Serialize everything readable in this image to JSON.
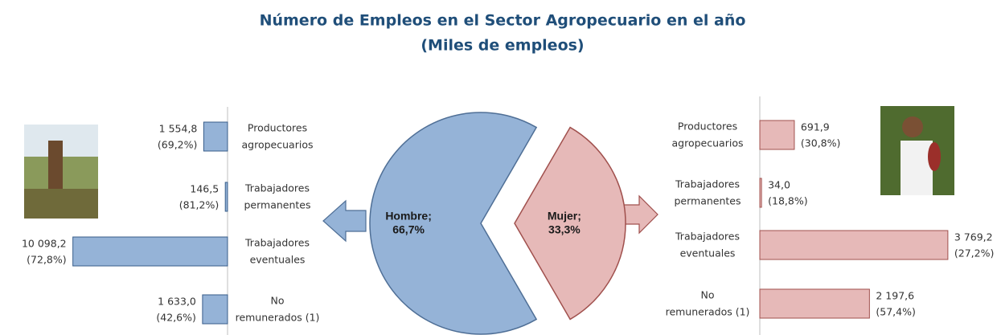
{
  "title_lines": [
    "Número de Empleos en el Sector Agropecuario en el año",
    "(Miles de empleos)"
  ],
  "chart_data": [
    {
      "type": "pie",
      "categories": [
        "Hombre;",
        "Mujer;"
      ],
      "values": [
        66.7,
        33.3
      ],
      "value_labels": [
        "66,7%",
        "33,3%"
      ],
      "colors": [
        "#95b3d7",
        "#e6b9b8"
      ]
    },
    {
      "type": "bar",
      "direction": "left",
      "color": "#95b3d7",
      "categories": [
        [
          "Productores",
          "agropecuarios"
        ],
        [
          "Trabajadores",
          "permanentes"
        ],
        [
          "Trabajadores",
          "eventuales"
        ],
        [
          "No",
          "remunerados (1)"
        ]
      ],
      "values": [
        1554.8,
        146.5,
        10098.2,
        1633.0
      ],
      "value_labels": [
        "1 554,8",
        "146,5",
        "10 098,2",
        "1 633,0"
      ],
      "shares": [
        69.2,
        81.2,
        72.8,
        42.6
      ],
      "share_labels": [
        "(69,2%)",
        "(81,2%)",
        "(72,8%)",
        "(42,6%)"
      ],
      "xlim": [
        0,
        10500
      ]
    },
    {
      "type": "bar",
      "direction": "right",
      "color": "#e6b9b8",
      "categories": [
        [
          "Productores",
          "agropecuarios"
        ],
        [
          "Trabajadores",
          "permanentes"
        ],
        [
          "Trabajadores",
          "eventuales"
        ],
        [
          "No",
          "remunerados (1)"
        ]
      ],
      "values": [
        691.9,
        34.0,
        3769.2,
        2197.6
      ],
      "value_labels": [
        "691,9",
        "34,0",
        "3 769,2",
        "2 197,6"
      ],
      "shares": [
        30.8,
        18.8,
        27.2,
        57.4
      ],
      "share_labels": [
        "(30,8%)",
        "(18,8%)",
        "(27,2%)",
        "(57,4%)"
      ],
      "xlim": [
        0,
        3900
      ]
    }
  ]
}
